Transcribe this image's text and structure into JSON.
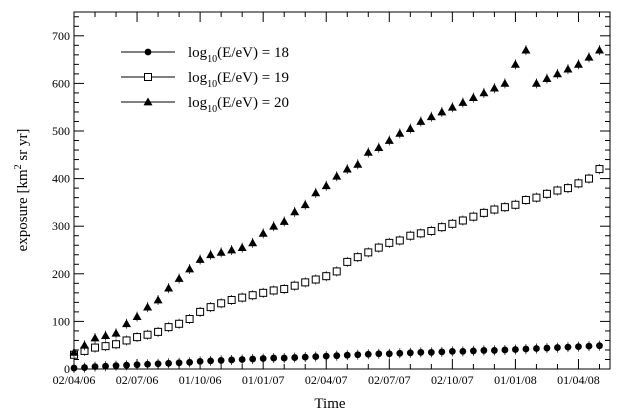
{
  "chart_data": {
    "type": "scatter",
    "xlabel": "Time",
    "ylabel_main": "exposure [km",
    "ylabel_sup": "2",
    "ylabel_rest": " sr yr]",
    "ylim": [
      0,
      750
    ],
    "xlim_months": [
      0,
      25.5
    ],
    "y_ticks": [
      "0",
      "100",
      "200",
      "300",
      "400",
      "500",
      "600",
      "700"
    ],
    "y_tick_values": [
      0,
      100,
      200,
      300,
      400,
      500,
      600,
      700
    ],
    "x_ticks": [
      "02/04/06",
      "02/07/06",
      "01/10/06",
      "01/01/07",
      "02/04/07",
      "02/07/07",
      "02/10/07",
      "01/01/08",
      "01/04/08"
    ],
    "x_tick_values": [
      0,
      3,
      6,
      9,
      12,
      15,
      18,
      21,
      24
    ],
    "grid": false,
    "legend_placement": "top-left",
    "x_unit": "months since 02/04/06",
    "x": [
      0,
      0.5,
      1,
      1.5,
      2,
      2.5,
      3,
      3.5,
      4,
      4.5,
      5,
      5.5,
      6,
      6.5,
      7,
      7.5,
      8,
      8.5,
      9,
      9.5,
      10,
      10.5,
      11,
      11.5,
      12,
      12.5,
      13,
      13.5,
      14,
      14.5,
      15,
      15.5,
      16,
      16.5,
      17,
      17.5,
      18,
      18.5,
      19,
      19.5,
      20,
      20.5,
      21,
      21.5,
      22,
      22.5,
      23,
      23.5,
      24,
      24.5,
      25
    ],
    "series": [
      {
        "label_pre": "log",
        "label_sub": "10",
        "label_post": "(E/eV) = 18",
        "marker": "filled-circle",
        "values": [
          2,
          3,
          5,
          6,
          7,
          8,
          9,
          10,
          11,
          12,
          13,
          14,
          16,
          17,
          18,
          19,
          20,
          21,
          22,
          23,
          23,
          24,
          25,
          26,
          27,
          28,
          29,
          30,
          31,
          32,
          32,
          33,
          34,
          35,
          35,
          36,
          37,
          37,
          38,
          39,
          39,
          40,
          41,
          42,
          43,
          44,
          45,
          46,
          47,
          48,
          49
        ]
      },
      {
        "label_pre": "log",
        "label_sub": "10",
        "label_post": "(E/eV) = 19",
        "marker": "open-square",
        "values": [
          30,
          38,
          45,
          48,
          52,
          60,
          67,
          72,
          78,
          88,
          95,
          105,
          120,
          130,
          138,
          145,
          150,
          155,
          160,
          165,
          168,
          175,
          182,
          188,
          195,
          205,
          225,
          235,
          245,
          255,
          265,
          270,
          280,
          285,
          290,
          298,
          305,
          312,
          320,
          328,
          335,
          340,
          345,
          355,
          360,
          368,
          375,
          380,
          390,
          400,
          420
        ]
      },
      {
        "label_pre": "log",
        "label_sub": "10",
        "label_post": "(E/eV) = 20",
        "marker": "filled-triangle",
        "values": [
          35,
          50,
          65,
          70,
          75,
          95,
          110,
          130,
          145,
          170,
          190,
          210,
          230,
          240,
          245,
          250,
          255,
          265,
          285,
          300,
          310,
          330,
          345,
          370,
          385,
          405,
          420,
          430,
          455,
          465,
          480,
          495,
          505,
          520,
          530,
          540,
          550,
          560,
          570,
          580,
          590,
          600,
          640,
          670,
          600,
          610,
          620,
          630,
          640,
          655,
          670
        ]
      }
    ]
  }
}
